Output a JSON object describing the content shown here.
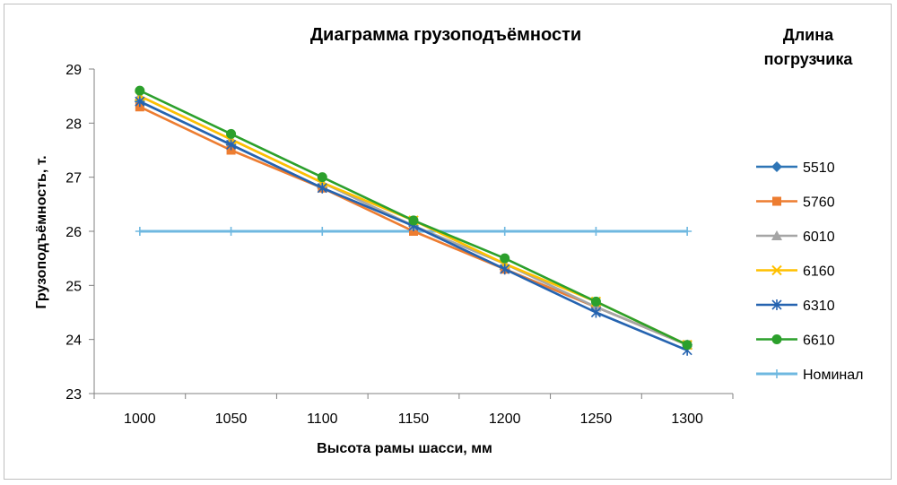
{
  "chart_data": {
    "type": "line",
    "title": "Диаграмма грузоподъёмности",
    "xlabel": "Высота рамы шасси, мм",
    "ylabel": "Грузоподъёмность, т.",
    "categories": [
      "1000",
      "1050",
      "1100",
      "1150",
      "1200",
      "1250",
      "1300"
    ],
    "ylim": [
      23,
      29
    ],
    "yticks": [
      "23",
      "24",
      "25",
      "26",
      "27",
      "28",
      "29"
    ],
    "grid": false,
    "legend": {
      "title_line1": "Длина",
      "title_line2": "погрузчика",
      "placement": "right"
    },
    "series": [
      {
        "name": "5510",
        "values": [
          28.4,
          27.6,
          26.8,
          26.1,
          25.3,
          24.6,
          23.9
        ],
        "color": "#2E75B6",
        "marker": "diamond"
      },
      {
        "name": "5760",
        "values": [
          28.3,
          27.5,
          26.8,
          26.0,
          25.3,
          24.6,
          23.9
        ],
        "color": "#ED7D31",
        "marker": "square"
      },
      {
        "name": "6010",
        "values": [
          28.5,
          27.7,
          26.9,
          26.1,
          25.4,
          24.6,
          23.9
        ],
        "color": "#A5A5A5",
        "marker": "triangle"
      },
      {
        "name": "6160",
        "values": [
          28.5,
          27.7,
          26.9,
          26.2,
          25.4,
          24.7,
          23.9
        ],
        "color": "#FFC000",
        "marker": "x"
      },
      {
        "name": "6310",
        "values": [
          28.4,
          27.6,
          26.8,
          26.1,
          25.3,
          24.5,
          23.8
        ],
        "color": "#2563B0",
        "marker": "star"
      },
      {
        "name": "6610",
        "values": [
          28.6,
          27.8,
          27.0,
          26.2,
          25.5,
          24.7,
          23.9
        ],
        "color": "#2CA02C",
        "marker": "circle"
      },
      {
        "name": "Номинал",
        "values": [
          26,
          26,
          26,
          26,
          26,
          26,
          26
        ],
        "color": "#6FB8E0",
        "marker": "plus"
      }
    ]
  }
}
